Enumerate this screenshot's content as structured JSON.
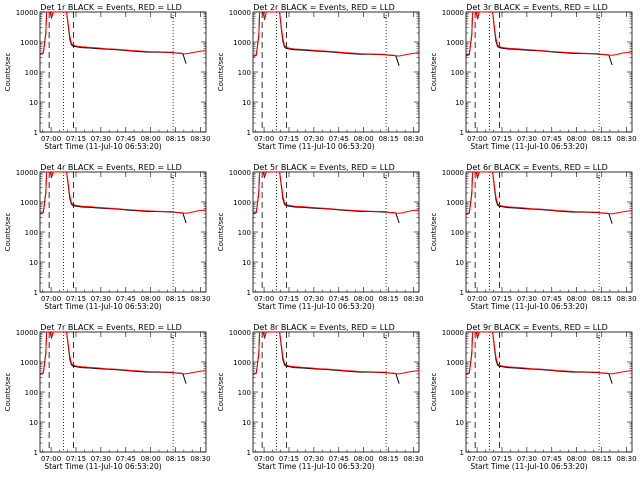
{
  "chart_data": {
    "type": "line",
    "scale": "log-y",
    "ylim": [
      1,
      10000
    ],
    "yticks": [
      "1",
      "10",
      "100",
      "1000",
      "10000"
    ],
    "xticks": [
      "07:00",
      "07:15",
      "07:30",
      "07:45",
      "08:00",
      "08:15",
      "08:30"
    ],
    "xlim_minutes": [
      0,
      100
    ],
    "xlabel": "Start Time (11-Jul-10 06:53:20)",
    "ylabel": "Counts/sec",
    "flag_label": "L",
    "colors": {
      "events": "#000000",
      "lld": "#ff0000"
    },
    "vlines": {
      "dashed_minutes": [
        5.5,
        20.2
      ],
      "dotted_minutes": [
        14.2,
        80.2
      ]
    },
    "series_template": {
      "x": [
        0,
        2,
        3.5,
        4,
        5,
        6,
        7,
        8,
        10,
        12,
        13,
        14,
        15,
        16,
        17,
        18,
        19,
        20,
        22,
        25,
        30,
        35,
        40,
        45,
        50,
        55,
        60,
        65,
        70,
        75,
        80,
        82,
        84,
        86,
        88,
        90,
        95,
        100
      ],
      "events": [
        400,
        430,
        2000,
        10000,
        10000,
        10000,
        6500,
        10000,
        10000,
        10000,
        10000,
        10000,
        10000,
        10000,
        3500,
        1200,
        800,
        720,
        690,
        650,
        630,
        600,
        580,
        560,
        530,
        500,
        480,
        460,
        460,
        450,
        440,
        430,
        420,
        410,
        190,
        null,
        null,
        null
      ],
      "lld": [
        380,
        420,
        1800,
        10000,
        10000,
        10000,
        7000,
        10000,
        10000,
        10000,
        10000,
        10000,
        10000,
        10000,
        4000,
        1500,
        900,
        780,
        730,
        690,
        660,
        630,
        600,
        580,
        550,
        520,
        500,
        480,
        470,
        460,
        455,
        420,
        430,
        410,
        400,
        420,
        480,
        520
      ]
    },
    "panels": [
      {
        "title": "Det 1r BLACK = Events, RED = LLD",
        "scale_factor": 1.0
      },
      {
        "title": "Det 2r BLACK = Events, RED = LLD",
        "scale_factor": 0.85
      },
      {
        "title": "Det 3r BLACK = Events, RED = LLD",
        "scale_factor": 0.9
      },
      {
        "title": "Det 4r BLACK = Events, RED = LLD",
        "scale_factor": 1.05
      },
      {
        "title": "Det 5r BLACK = Events, RED = LLD",
        "scale_factor": 1.05
      },
      {
        "title": "Det 6r BLACK = Events, RED = LLD",
        "scale_factor": 1.0
      },
      {
        "title": "Det 7r BLACK = Events, RED = LLD",
        "scale_factor": 1.0
      },
      {
        "title": "Det 8r BLACK = Events, RED = LLD",
        "scale_factor": 1.0
      },
      {
        "title": "Det 9r BLACK = Events, RED = LLD",
        "scale_factor": 1.0
      }
    ]
  }
}
